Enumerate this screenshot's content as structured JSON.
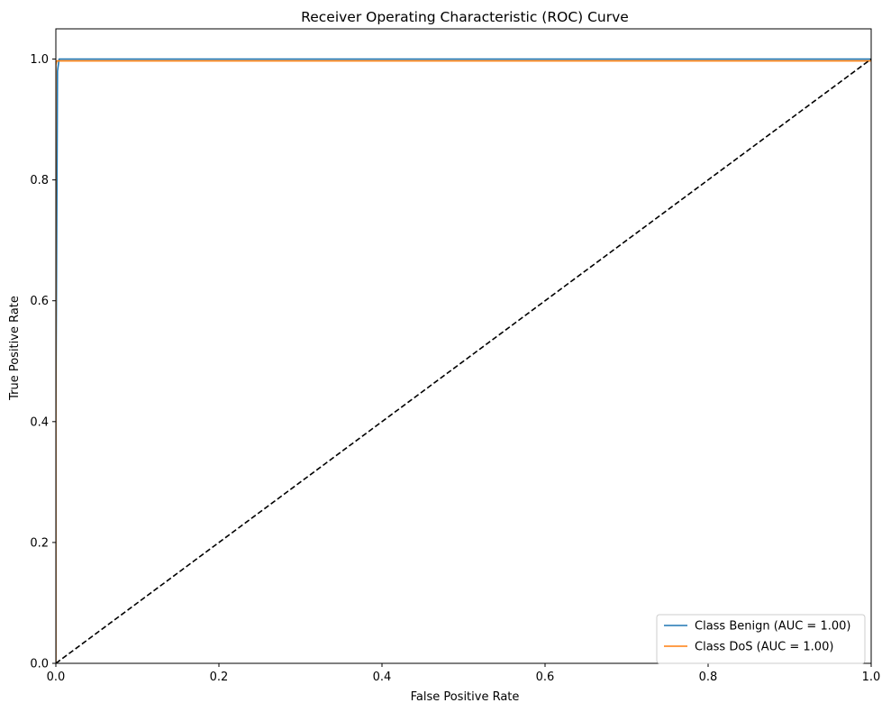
{
  "chart_data": {
    "type": "line",
    "title": "Receiver Operating Characteristic (ROC) Curve",
    "xlabel": "False Positive Rate",
    "ylabel": "True Positive Rate",
    "xlim": [
      0.0,
      1.0
    ],
    "ylim": [
      0.0,
      1.05
    ],
    "xticks": [
      0.0,
      0.2,
      0.4,
      0.6,
      0.8,
      1.0
    ],
    "yticks": [
      0.0,
      0.2,
      0.4,
      0.6,
      0.8,
      1.0
    ],
    "xtick_labels": [
      "0.0",
      "0.2",
      "0.4",
      "0.6",
      "0.8",
      "1.0"
    ],
    "ytick_labels": [
      "0.0",
      "0.2",
      "0.4",
      "0.6",
      "0.8",
      "1.0"
    ],
    "grid": false,
    "legend_position": "lower-right",
    "series": [
      {
        "name": "Class Benign (AUC = 1.00)",
        "color": "#1f77b4",
        "x": [
          0.0,
          0.0,
          0.002,
          0.004,
          1.0
        ],
        "y": [
          0.0,
          0.4,
          0.98,
          1.0,
          1.0
        ]
      },
      {
        "name": "Class DoS (AUC = 1.00)",
        "color": "#ff7f0e",
        "x": [
          0.0,
          0.0,
          0.001,
          1.0,
          1.0
        ],
        "y": [
          0.0,
          0.99,
          0.997,
          0.997,
          1.0
        ]
      },
      {
        "name": "",
        "style": "dashed",
        "color": "#000000",
        "x": [
          0.0,
          1.0
        ],
        "y": [
          0.0,
          1.0
        ]
      }
    ]
  }
}
